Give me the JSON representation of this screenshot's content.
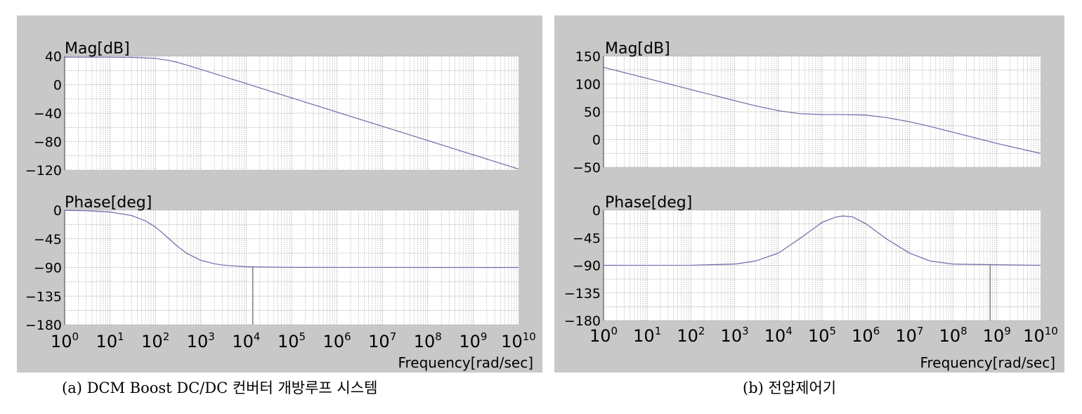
{
  "chart_data": [
    {
      "type": "line",
      "caption": "(a) DCM Boost DC/DC 컨버터 개방루프 시스템",
      "magnitude": {
        "ylabel": "Mag[dB]",
        "ylim": [
          -120,
          40
        ],
        "yticks": [
          40,
          0,
          -40,
          -80,
          -120
        ],
        "x": [
          1,
          10,
          30,
          100,
          200,
          300,
          500,
          1000,
          3000,
          10000,
          100000,
          1000000,
          10000000,
          100000000,
          1000000000,
          10000000000
        ],
        "y": [
          38.8,
          38.7,
          38.5,
          37,
          34,
          31.5,
          27.5,
          21.5,
          12,
          1.5,
          -18.5,
          -38.5,
          -58.5,
          -78.5,
          -98.5,
          -118.5
        ]
      },
      "phase": {
        "ylabel": "Phase[deg]",
        "ylim": [
          -180,
          0
        ],
        "yticks": [
          0,
          -45,
          -90,
          -135,
          -180
        ],
        "x": [
          1,
          3,
          10,
          30,
          60,
          100,
          150,
          200,
          300,
          500,
          1000,
          2000,
          3000,
          10000,
          100000,
          10000000000
        ],
        "y": [
          -0.3,
          -0.9,
          -2.9,
          -8.5,
          -16.7,
          -26.6,
          -36.9,
          -45,
          -56.3,
          -68.2,
          -78.7,
          -84.3,
          -86.2,
          -88.9,
          -89.9,
          -90
        ],
        "marker_x": 14000
      },
      "xlabel": "Frequency[rad/sec]",
      "xlim": [
        1,
        10000000000
      ],
      "xscale": "log",
      "xtick_bases": [
        "10",
        "10",
        "10",
        "10",
        "10",
        "10",
        "10",
        "10",
        "10",
        "10",
        "10"
      ],
      "xtick_exponents": [
        "0",
        "1",
        "2",
        "3",
        "4",
        "5",
        "6",
        "7",
        "8",
        "9",
        "10"
      ],
      "grid": true
    },
    {
      "type": "line",
      "caption": "(b) 전압제어기",
      "magnitude": {
        "ylabel": "Mag[dB]",
        "ylim": [
          -50,
          150
        ],
        "yticks": [
          150,
          100,
          50,
          0,
          -50
        ],
        "x": [
          1,
          10,
          100,
          1000,
          3000,
          10000,
          30000,
          100000,
          300000,
          1000000,
          3000000,
          10000000,
          30000000,
          100000000,
          1000000000,
          10000000000
        ],
        "y": [
          130,
          110,
          90,
          70,
          60.7,
          52,
          46.6,
          45,
          45,
          44,
          39.5,
          32,
          23.5,
          13,
          -7,
          -25
        ]
      },
      "phase": {
        "ylabel": "Phase[deg]",
        "ylim": [
          -180,
          0
        ],
        "yticks": [
          0,
          -45,
          -90,
          -135,
          -180
        ],
        "x": [
          1,
          100,
          1000,
          3000,
          10000,
          30000,
          100000,
          200000,
          300000,
          500000,
          1000000,
          3000000,
          10000000,
          30000000,
          100000000,
          10000000000
        ],
        "y": [
          -90,
          -89.8,
          -88,
          -83,
          -70,
          -47,
          -20,
          -11.5,
          -9.5,
          -11,
          -22,
          -47,
          -70,
          -83,
          -88,
          -90
        ],
        "marker_x": 700000000
      },
      "xlabel": "Frequency[rad/sec]",
      "xlim": [
        1,
        10000000000
      ],
      "xscale": "log",
      "xtick_bases": [
        "10",
        "10",
        "10",
        "10",
        "10",
        "10",
        "10",
        "10",
        "10",
        "10",
        "10"
      ],
      "xtick_exponents": [
        "0",
        "1",
        "2",
        "3",
        "4",
        "5",
        "6",
        "7",
        "8",
        "9",
        "10"
      ],
      "grid": true
    }
  ],
  "style": {
    "panel_bg": "#c8c8c8",
    "plot_bg": "#ffffff",
    "grid_color": "#a0a0a0",
    "curve_color": "#6a6aa8",
    "axis_color": "#404040"
  }
}
